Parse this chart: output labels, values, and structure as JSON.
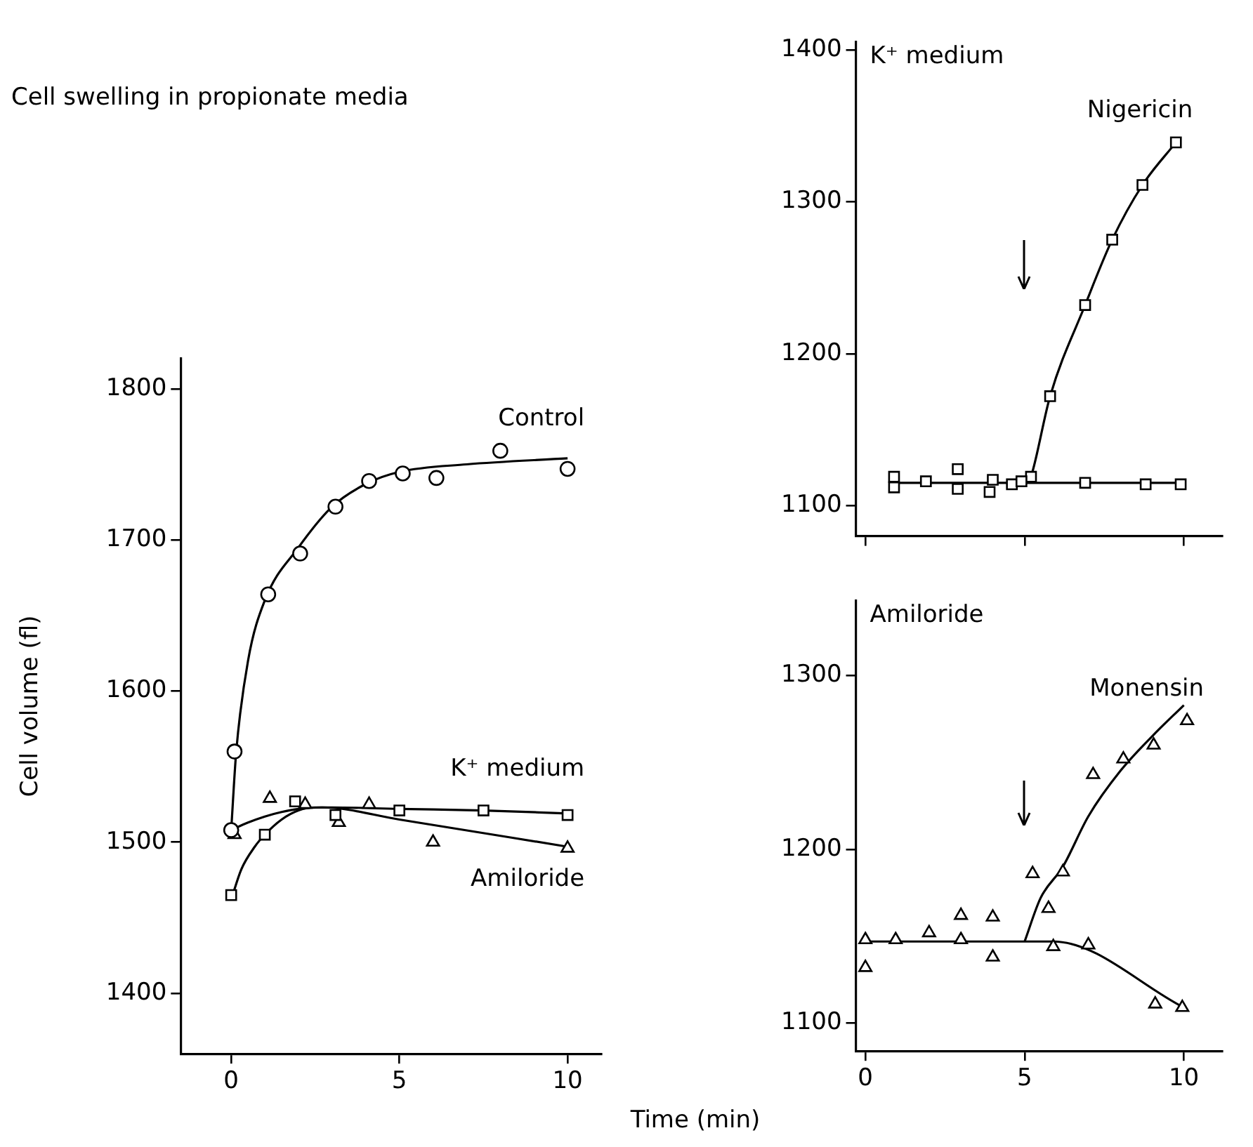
{
  "chart_data": [
    {
      "type": "scatter",
      "title": "Cell swelling in propionate media",
      "xlabel": "Time (min)",
      "ylabel": "Cell volume (fl)",
      "xlim": [
        -1.5,
        11
      ],
      "xticks": [
        0,
        5,
        10
      ],
      "ylim": [
        1360,
        1820
      ],
      "yticks": [
        1400,
        1500,
        1600,
        1700,
        1800
      ],
      "grid": false,
      "legend": false,
      "series": [
        {
          "name": "Control",
          "color": "#000000",
          "marker": "circle",
          "x": [
            0,
            0.1,
            1.1,
            2.05,
            3.1,
            4.1,
            5.1,
            6.1,
            8,
            10
          ],
          "values": [
            1508,
            1560,
            1664,
            1691,
            1722,
            1739,
            1744,
            1741,
            1759,
            1747
          ]
        },
        {
          "name": "K⁺ medium",
          "color": "#000000",
          "marker": "square",
          "x": [
            0,
            1,
            1.9,
            3.1,
            5,
            7.5,
            10
          ],
          "values": [
            1465,
            1505,
            1527,
            1518,
            1521,
            1521,
            1518
          ]
        },
        {
          "name": "Amiloride",
          "color": "#000000",
          "marker": "triangle",
          "x": [
            0.1,
            1.15,
            2.2,
            3.2,
            4.1,
            6,
            10
          ],
          "values": [
            1505,
            1529,
            1525,
            1513,
            1525,
            1500,
            1496
          ]
        },
        {
          "type": "line",
          "color": "#000000",
          "marker": "none",
          "x": [
            0,
            0.15,
            0.5,
            1,
            2,
            3,
            4,
            5,
            7,
            10
          ],
          "values": [
            1508,
            1560,
            1620,
            1660,
            1695,
            1722,
            1737,
            1745,
            1750,
            1754
          ]
        },
        {
          "type": "line",
          "color": "#000000",
          "marker": "none",
          "x": [
            0,
            0.3,
            0.7,
            1,
            1.5,
            2,
            2.5,
            3,
            5,
            7.5,
            10
          ],
          "values": [
            1462,
            1482,
            1497,
            1505,
            1515,
            1521,
            1523,
            1523,
            1522,
            1521,
            1519
          ]
        },
        {
          "type": "line",
          "color": "#000000",
          "marker": "none",
          "x": [
            0,
            0.5,
            1,
            1.5,
            2,
            2.7,
            5,
            10
          ],
          "values": [
            1508,
            1513,
            1517,
            1520,
            1522,
            1523,
            1515,
            1497
          ]
        }
      ]
    },
    {
      "type": "scatter",
      "xlim": [
        -0.3,
        11.2
      ],
      "xticks": [
        0,
        5,
        10
      ],
      "ylim": [
        1080,
        1405
      ],
      "yticks": [
        1100,
        1200,
        1300,
        1400
      ],
      "tick_labels": "y",
      "grid": false,
      "legend": false,
      "annotations": [
        "K⁺ medium"
      ],
      "ref_lines": [
        {
          "axis": "x",
          "value": 5
        }
      ],
      "series": [
        {
          "color": "#000000",
          "marker": "square",
          "x": [
            0.9,
            0.9,
            1.9,
            2.9,
            2.9,
            3.9,
            4,
            4.6,
            4.9,
            6.9,
            8.8,
            9.9
          ],
          "values": [
            1119,
            1112,
            1116,
            1124,
            1111,
            1109,
            1117,
            1114,
            1116,
            1115,
            1114,
            1114
          ]
        },
        {
          "name": "Nigericin",
          "color": "#000000",
          "marker": "square",
          "x": [
            5.2,
            5.8,
            6.9,
            7.75,
            8.7,
            9.75
          ],
          "values": [
            1119,
            1172,
            1232,
            1275,
            1311,
            1339
          ]
        },
        {
          "type": "line",
          "color": "#000000",
          "marker": "none",
          "x": [
            0.9,
            10
          ],
          "values": [
            1115,
            1115
          ]
        },
        {
          "type": "line",
          "color": "#000000",
          "marker": "none",
          "x": [
            5.1,
            5.2,
            5.8,
            6.9,
            7.75,
            8.7,
            9.75
          ],
          "values": [
            1115,
            1119,
            1172,
            1232,
            1275,
            1311,
            1339
          ]
        }
      ]
    },
    {
      "type": "scatter",
      "xlim": [
        -0.3,
        11.2
      ],
      "xticks": [
        0,
        5,
        10
      ],
      "ylim": [
        1084,
        1343
      ],
      "yticks": [
        1100,
        1200,
        1300
      ],
      "grid": false,
      "legend": false,
      "annotations": [
        "Amiloride"
      ],
      "ref_lines": [
        {
          "axis": "x",
          "value": 5
        }
      ],
      "series": [
        {
          "color": "#000000",
          "marker": "triangle",
          "x": [
            0,
            0,
            0.95,
            2,
            3,
            3,
            4,
            4,
            5.9,
            7,
            9.1,
            9.95
          ],
          "values": [
            1148,
            1132,
            1148,
            1152,
            1162,
            1148,
            1161,
            1138,
            1144,
            1145,
            1111,
            1109
          ]
        },
        {
          "name": "Monensin",
          "color": "#000000",
          "marker": "triangle",
          "x": [
            5.25,
            5.75,
            6.2,
            7.15,
            8.1,
            9.05,
            10.1
          ],
          "values": [
            1186,
            1166,
            1187,
            1243,
            1252,
            1260,
            1274
          ]
        },
        {
          "type": "line",
          "color": "#000000",
          "marker": "none",
          "x": [
            0,
            5.9,
            10
          ],
          "values": [
            1147,
            1147,
            1109
          ]
        },
        {
          "type": "line",
          "color": "#000000",
          "marker": "none",
          "x": [
            5,
            5.5,
            6.2,
            7,
            8,
            9,
            10
          ],
          "values": [
            1147,
            1172,
            1190,
            1219,
            1245,
            1265,
            1283
          ]
        }
      ]
    }
  ]
}
